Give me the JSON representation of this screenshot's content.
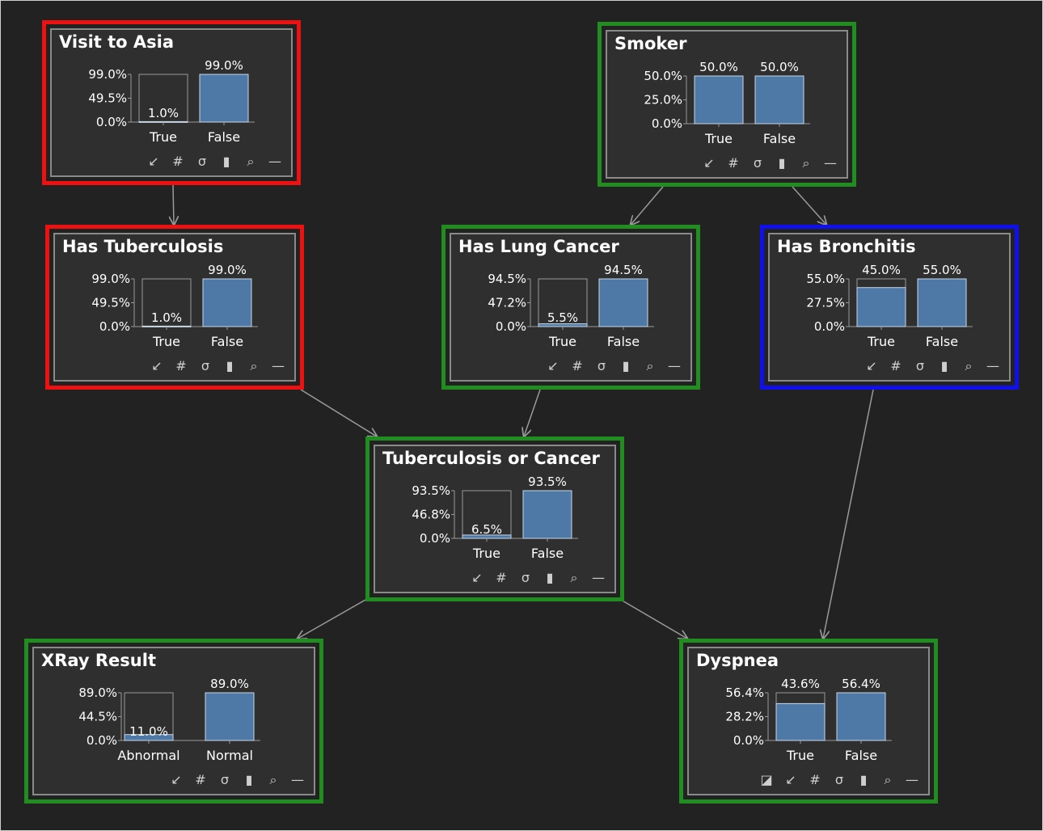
{
  "nodes": [
    {
      "id": "asia",
      "title": "Visit to Asia",
      "highlight": "red",
      "axis": [
        "99.0%",
        "49.5%",
        "0.0%"
      ],
      "ymax": 99.0,
      "states": [
        {
          "label": "True",
          "value": 1.0,
          "text": "1.0%"
        },
        {
          "label": "False",
          "value": 99.0,
          "text": "99.0%"
        }
      ],
      "tools": "std"
    },
    {
      "id": "smoker",
      "title": "Smoker",
      "highlight": "green",
      "axis": [
        "50.0%",
        "25.0%",
        "0.0%"
      ],
      "ymax": 50.0,
      "states": [
        {
          "label": "True",
          "value": 50.0,
          "text": "50.0%"
        },
        {
          "label": "False",
          "value": 50.0,
          "text": "50.0%"
        }
      ],
      "tools": "std"
    },
    {
      "id": "tub",
      "title": "Has Tuberculosis",
      "highlight": "red",
      "axis": [
        "99.0%",
        "49.5%",
        "0.0%"
      ],
      "ymax": 99.0,
      "states": [
        {
          "label": "True",
          "value": 1.0,
          "text": "1.0%"
        },
        {
          "label": "False",
          "value": 99.0,
          "text": "99.0%"
        }
      ],
      "tools": "std"
    },
    {
      "id": "lung",
      "title": "Has Lung Cancer",
      "highlight": "green",
      "axis": [
        "94.5%",
        "47.2%",
        "0.0%"
      ],
      "ymax": 94.5,
      "states": [
        {
          "label": "True",
          "value": 5.5,
          "text": "5.5%"
        },
        {
          "label": "False",
          "value": 94.5,
          "text": "94.5%"
        }
      ],
      "tools": "std"
    },
    {
      "id": "bronc",
      "title": "Has Bronchitis",
      "highlight": "blue",
      "axis": [
        "55.0%",
        "27.5%",
        "0.0%"
      ],
      "ymax": 55.0,
      "states": [
        {
          "label": "True",
          "value": 45.0,
          "text": "45.0%"
        },
        {
          "label": "False",
          "value": 55.0,
          "text": "55.0%"
        }
      ],
      "tools": "std"
    },
    {
      "id": "either",
      "title": "Tuberculosis or Cancer",
      "highlight": "green",
      "axis": [
        "93.5%",
        "46.8%",
        "0.0%"
      ],
      "ymax": 93.5,
      "states": [
        {
          "label": "True",
          "value": 6.5,
          "text": "6.5%"
        },
        {
          "label": "False",
          "value": 93.5,
          "text": "93.5%"
        }
      ],
      "tools": "std"
    },
    {
      "id": "xray",
      "title": "XRay Result",
      "highlight": "green",
      "axis": [
        "89.0%",
        "44.5%",
        "0.0%"
      ],
      "ymax": 89.0,
      "states": [
        {
          "label": "Abnormal",
          "value": 11.0,
          "text": "11.0%"
        },
        {
          "label": "Normal",
          "value": 89.0,
          "text": "89.0%"
        }
      ],
      "tools": "std"
    },
    {
      "id": "dysp",
      "title": "Dyspnea",
      "highlight": "green",
      "axis": [
        "56.4%",
        "28.2%",
        "0.0%"
      ],
      "ymax": 56.4,
      "states": [
        {
          "label": "True",
          "value": 43.6,
          "text": "43.6%"
        },
        {
          "label": "False",
          "value": 56.4,
          "text": "56.4%"
        }
      ],
      "tools": "ext"
    }
  ],
  "edges": [
    {
      "from": "asia",
      "to": "tub"
    },
    {
      "from": "smoker",
      "to": "lung"
    },
    {
      "from": "smoker",
      "to": "bronc"
    },
    {
      "from": "tub",
      "to": "either"
    },
    {
      "from": "lung",
      "to": "either"
    },
    {
      "from": "either",
      "to": "xray"
    },
    {
      "from": "either",
      "to": "dysp"
    },
    {
      "from": "bronc",
      "to": "dysp"
    }
  ],
  "toolbar": {
    "std": [
      {
        "name": "collapse-arrow-icon",
        "glyph": "↙"
      },
      {
        "name": "hash-grid-icon",
        "glyph": "#"
      },
      {
        "name": "sigma-icon",
        "glyph": "σ"
      },
      {
        "name": "bar-chart-icon",
        "glyph": "▮"
      },
      {
        "name": "zoom-icon",
        "glyph": "⌕"
      },
      {
        "name": "minimize-icon",
        "glyph": "—"
      }
    ],
    "ext": [
      {
        "name": "resize-box-icon",
        "glyph": "◪"
      },
      {
        "name": "collapse-arrow-icon",
        "glyph": "↙"
      },
      {
        "name": "hash-grid-icon",
        "glyph": "#"
      },
      {
        "name": "sigma-icon",
        "glyph": "σ"
      },
      {
        "name": "bar-chart-icon",
        "glyph": "▮"
      },
      {
        "name": "zoom-icon",
        "glyph": "⌕"
      },
      {
        "name": "minimize-icon",
        "glyph": "—"
      }
    ]
  },
  "colors": {
    "bar_fill": "#4e79a7",
    "bar_outline": "#9a9a9a",
    "edge": "#9a9a9a",
    "text": "#ffffff"
  }
}
